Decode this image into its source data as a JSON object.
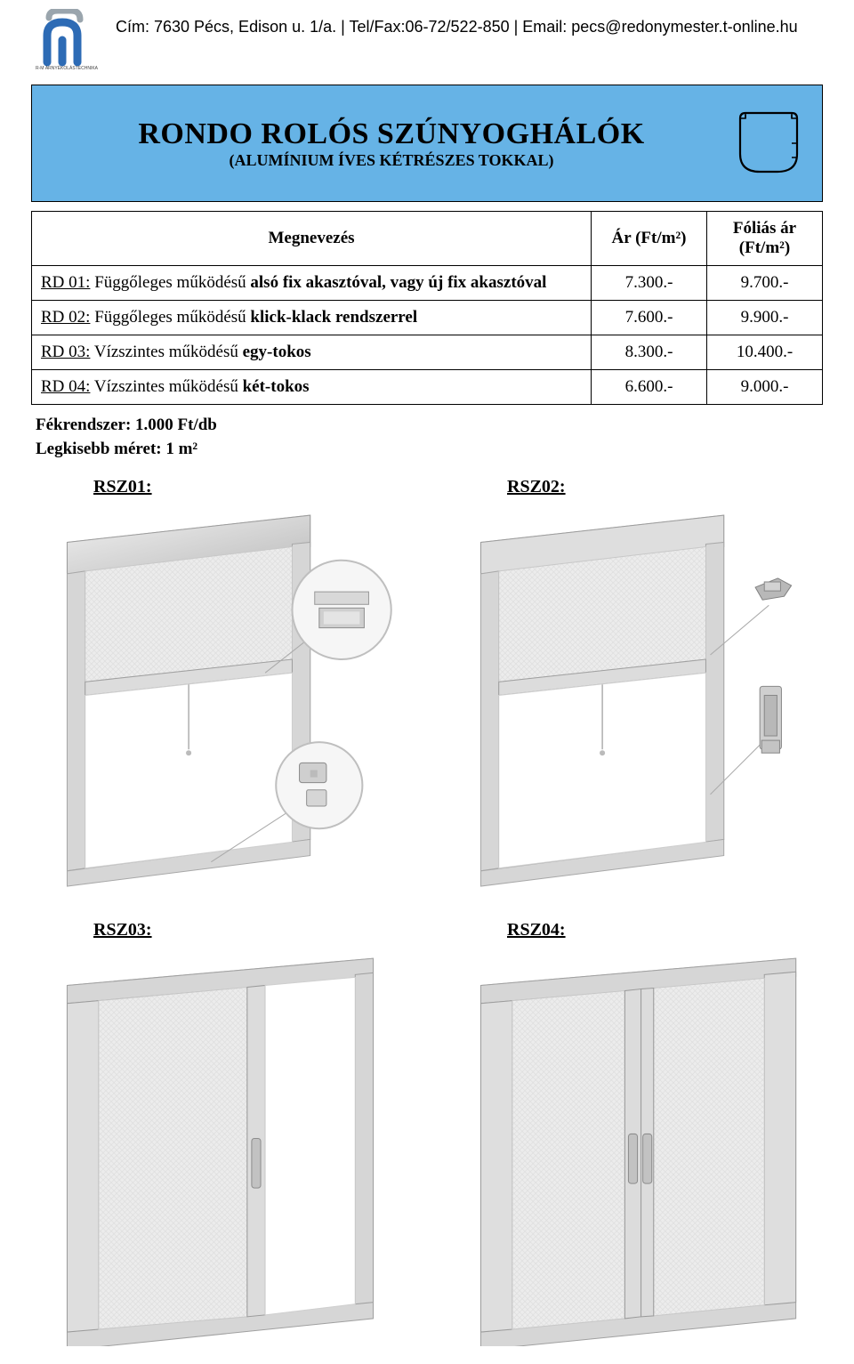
{
  "header": {
    "contact": "Cím: 7630 Pécs, Edison u. 1/a. | Tel/Fax:06-72/522-850 | Email: pecs@redonymester.t-online.hu"
  },
  "banner": {
    "title": "RONDO ROLÓS SZÚNYOGHÁLÓK",
    "subtitle": "(ALUMÍNIUM ÍVES KÉTRÉSZES TOKKAL)",
    "bg_color": "#66b3e6"
  },
  "table": {
    "headers": {
      "name": "Megnevezés",
      "price": "Ár (Ft/m²)",
      "foil": "Fóliás ár (Ft/m²)"
    },
    "rows": [
      {
        "code": "RD 01:",
        "desc_prefix": " Függőleges működésű ",
        "desc_bold": "alsó fix akasztóval, vagy új fix akasztóval",
        "price": "7.300.-",
        "foil": "9.700.-"
      },
      {
        "code": "RD 02:",
        "desc_prefix": " Függőleges működésű ",
        "desc_bold": "klick-klack rendszerrel",
        "price": "7.600.-",
        "foil": "9.900.-"
      },
      {
        "code": "RD 03:",
        "desc_prefix": " Vízszintes működésű ",
        "desc_bold": "egy-tokos",
        "price": "8.300.-",
        "foil": "10.400.-"
      },
      {
        "code": "RD 04:",
        "desc_prefix": " Vízszintes működésű ",
        "desc_bold": "két-tokos",
        "price": "6.600.-",
        "foil": "9.000.-"
      }
    ]
  },
  "notes": {
    "line1": "Fékrendszer: 1.000 Ft/db",
    "line2": "Legkisebb méret: 1 m²"
  },
  "drawings": {
    "labels": [
      "RSZ01:",
      "RSZ02:",
      "RSZ03:",
      "RSZ04:"
    ]
  },
  "colors": {
    "frame": "#d0d0d0",
    "frame_dark": "#a8a8a8",
    "frame_light": "#e8e8e8",
    "mesh": "#e8e8e8",
    "mesh_line": "#d8d8d8",
    "callout_ring": "#bfbfbf",
    "callout_fill": "#f5f5f5",
    "detail": "#9a9a9a",
    "logo_blue": "#2d6bb5",
    "logo_gray": "#9aa5ad"
  }
}
